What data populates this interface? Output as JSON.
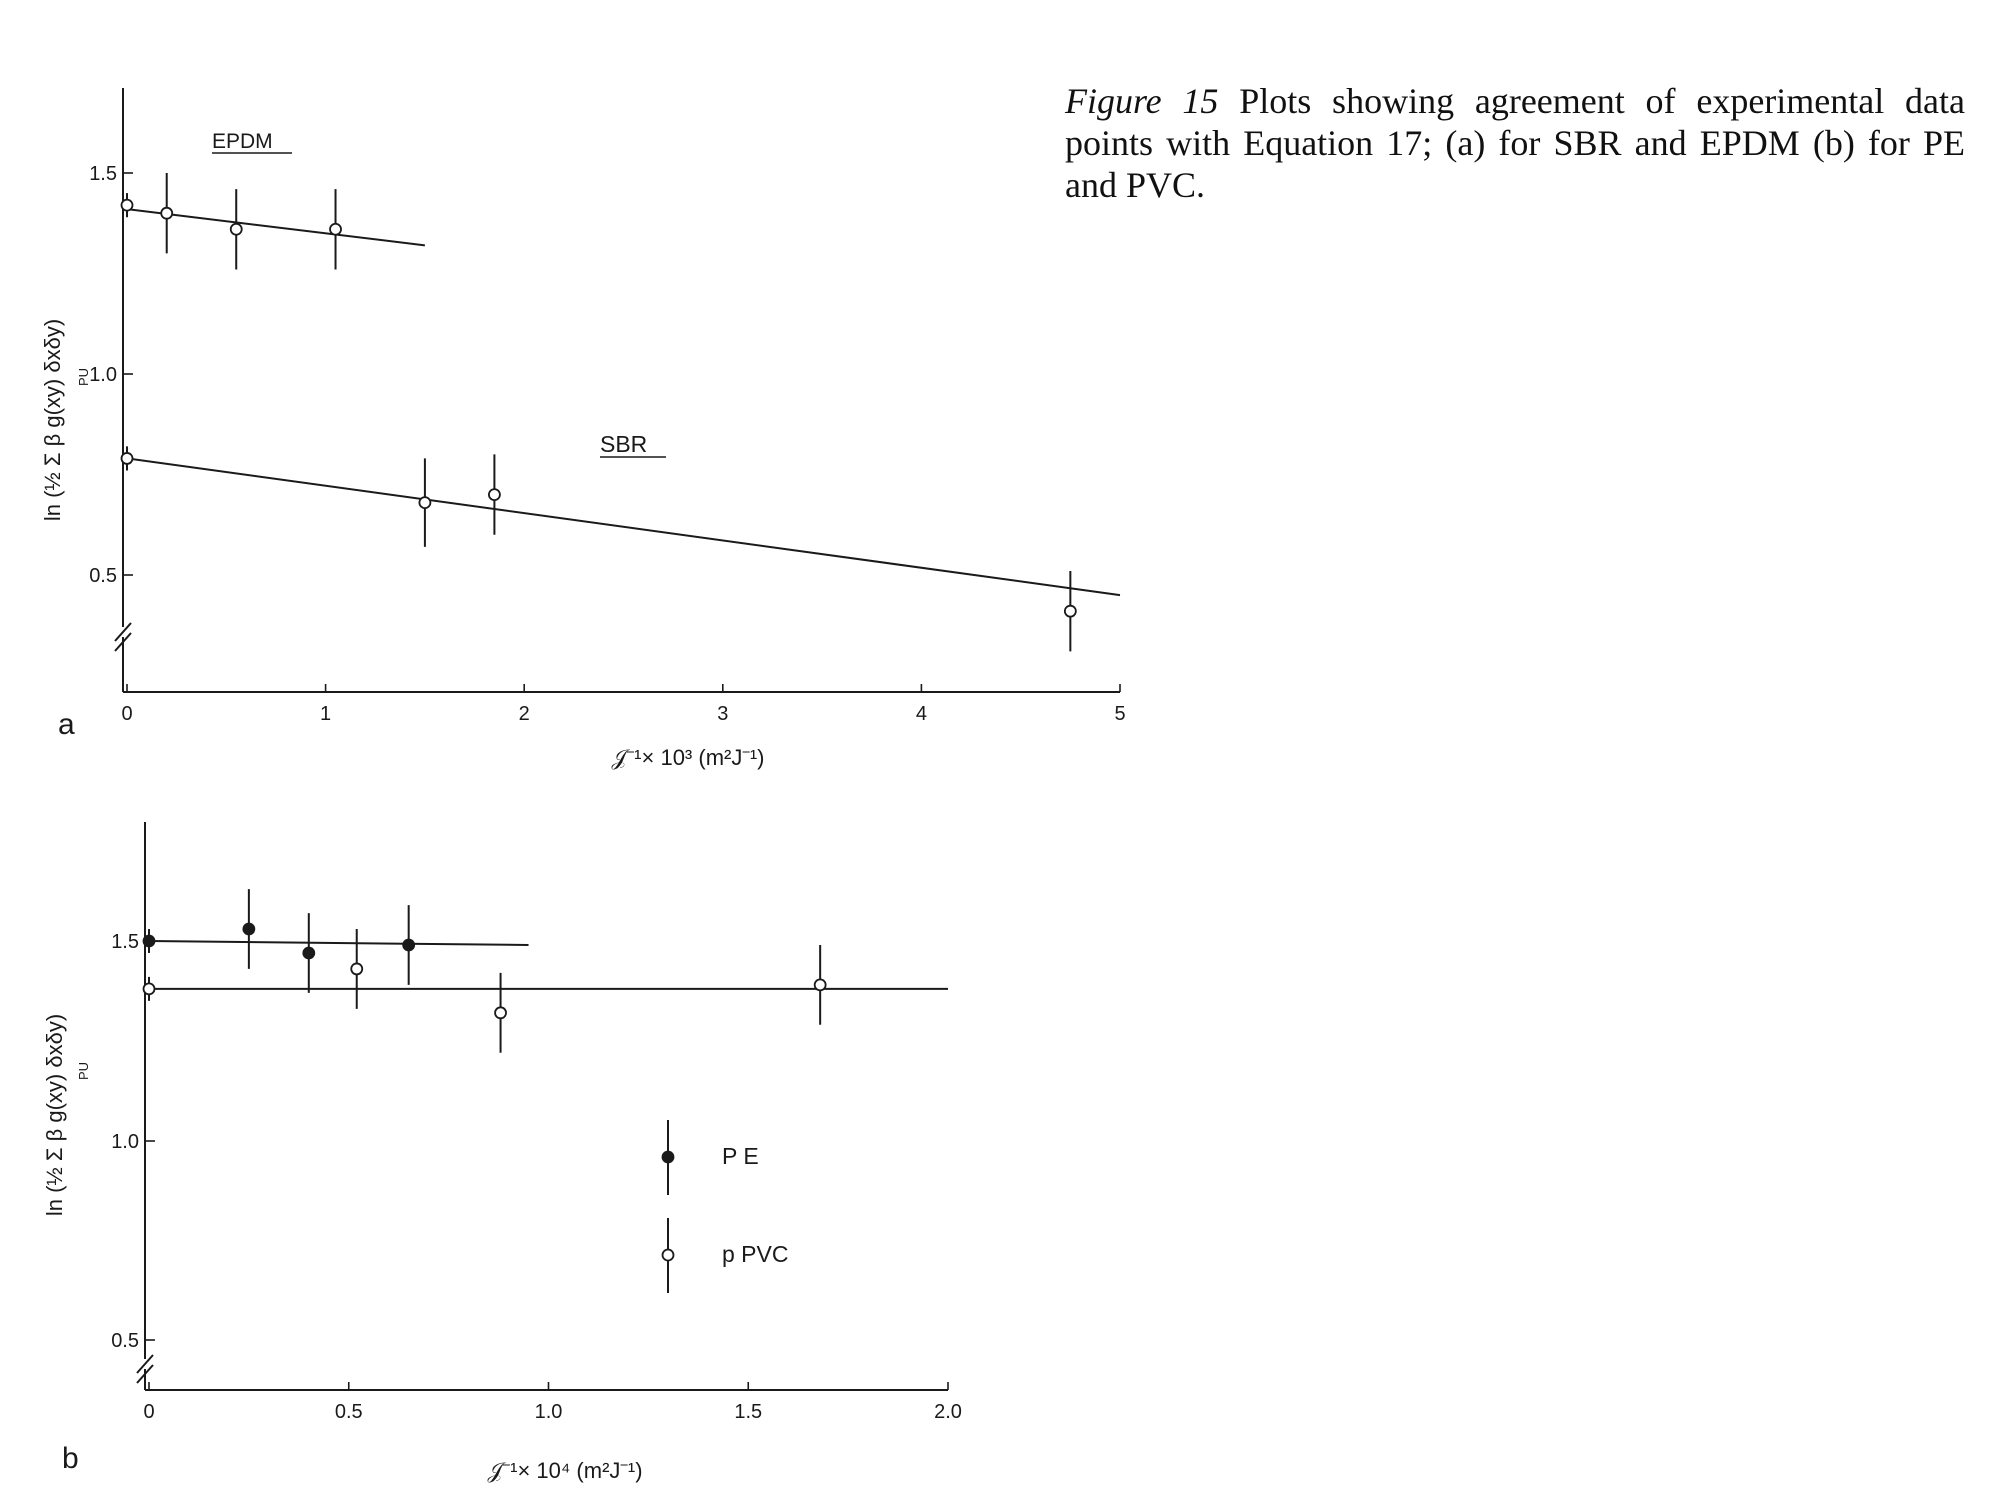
{
  "caption": {
    "label": "Figure 15",
    "text": "Plots showing agreement of experimental data points with Equation 17; (a) for SBR and EPDM (b) for PE and PVC."
  },
  "colors": {
    "ink": "#1a1a1a",
    "background": "#ffffff"
  },
  "chart_data": [
    {
      "type": "scatter",
      "panel": "a",
      "xlabel": "𝒥⁻¹× 10³ (m²J⁻¹)",
      "ylabel": "ln (½ Σ β g(xy) δxδy)",
      "ylabel_subscript": "PU",
      "xlim": [
        0,
        5
      ],
      "ylim": [
        0.5,
        1.5
      ],
      "xticks": [
        0,
        1,
        2,
        3,
        4,
        5
      ],
      "xtick_labels": [
        "0",
        "1",
        "2",
        "3",
        "4",
        "5"
      ],
      "yticks": [
        0.5,
        1.0,
        1.5
      ],
      "ytick_labels": [
        "0.5",
        "1.0",
        "1.5"
      ],
      "axis_break": "y",
      "grid": false,
      "series": [
        {
          "name": "EPDM",
          "marker": "open-circle",
          "x": [
            0,
            0.2,
            0.55,
            1.05
          ],
          "y": [
            1.42,
            1.4,
            1.36,
            1.36
          ],
          "yerr": [
            0.03,
            0.1,
            0.1,
            0.1
          ],
          "fit": {
            "x": [
              0,
              1.5
            ],
            "y": [
              1.41,
              1.32
            ]
          }
        },
        {
          "name": "SBR",
          "marker": "open-circle",
          "x": [
            0,
            1.5,
            1.85,
            4.75
          ],
          "y": [
            0.79,
            0.68,
            0.7,
            0.41
          ],
          "yerr": [
            0.03,
            0.11,
            0.1,
            0.1
          ],
          "fit": {
            "x": [
              0,
              5
            ],
            "y": [
              0.79,
              0.45
            ]
          }
        }
      ]
    },
    {
      "type": "scatter",
      "panel": "b",
      "xlabel": "𝒥⁻¹× 10⁴ (m²J⁻¹)",
      "ylabel": "ln (½ Σ β g(xy) δxδy)",
      "ylabel_subscript": "PU",
      "xlim": [
        0,
        2.0
      ],
      "ylim": [
        0.5,
        1.5
      ],
      "xticks": [
        0,
        0.5,
        1.0,
        1.5,
        2.0
      ],
      "xtick_labels": [
        "0",
        "0.5",
        "1.0",
        "1.5",
        "2.0"
      ],
      "yticks": [
        0.5,
        1.0,
        1.5
      ],
      "ytick_labels": [
        "0.5",
        "1.0",
        "1.5"
      ],
      "axis_break": "y",
      "grid": false,
      "legend": {
        "position": "center-right",
        "entries": [
          "P E",
          "p  PVC"
        ]
      },
      "series": [
        {
          "name": "PE",
          "marker": "filled-circle",
          "x": [
            0,
            0.25,
            0.4,
            0.65
          ],
          "y": [
            1.5,
            1.53,
            1.47,
            1.49
          ],
          "yerr": [
            0.03,
            0.1,
            0.1,
            0.1
          ],
          "fit": {
            "x": [
              0,
              0.95
            ],
            "y": [
              1.5,
              1.49
            ]
          }
        },
        {
          "name": "pPVC",
          "marker": "open-circle",
          "x": [
            0,
            0.52,
            0.88,
            1.68
          ],
          "y": [
            1.38,
            1.43,
            1.32,
            1.39
          ],
          "yerr": [
            0.03,
            0.1,
            0.1,
            0.1
          ],
          "fit": {
            "x": [
              0,
              2.0
            ],
            "y": [
              1.38,
              1.38
            ]
          }
        }
      ]
    }
  ],
  "panels": [
    {
      "letter": "a",
      "series_labels": [
        "EPDM",
        "SBR"
      ]
    },
    {
      "letter": "b",
      "series_labels": []
    }
  ]
}
